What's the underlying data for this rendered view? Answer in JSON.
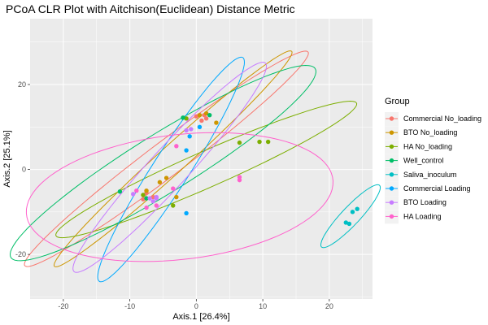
{
  "chart_data": {
    "type": "scatter",
    "title": "PCoA CLR Plot with Aitchison(Euclidean) Distance Metric",
    "xlabel": "Axis.1   [26.4%]",
    "ylabel": "Axis.2   [25.1%]",
    "xlim": [
      -25,
      26.5
    ],
    "ylim": [
      -30.5,
      35.5
    ],
    "x_ticks": [
      -20,
      -10,
      0,
      10,
      20
    ],
    "y_ticks": [
      -20,
      0,
      20
    ],
    "grid": true,
    "legend": {
      "title": "Group",
      "position": "right"
    },
    "series": [
      {
        "name": "Commercial No_loading",
        "color": "#F8766D",
        "points": [
          [
            0,
            12.5
          ],
          [
            0.8,
            11.5
          ],
          [
            1.5,
            12
          ],
          [
            1.2,
            12.8
          ],
          [
            -7.5,
            -5.5
          ],
          [
            -6.5,
            -6.5
          ],
          [
            -8,
            -7
          ]
        ],
        "ellipse": {
          "cx": -4.5,
          "cy": 2.5,
          "rx": 33,
          "ry": 3.3,
          "angle_deg": 50
        }
      },
      {
        "name": "BTO No_loading",
        "color": "#CD9600",
        "points": [
          [
            0.5,
            12.8
          ],
          [
            1.5,
            13.2
          ],
          [
            3,
            11
          ],
          [
            -7.5,
            -5
          ],
          [
            -5.5,
            -3
          ],
          [
            -4.5,
            -2
          ],
          [
            -3,
            -6.5
          ]
        ],
        "ellipse": {
          "cx": -3.5,
          "cy": 2.5,
          "rx": 31,
          "ry": 2.5,
          "angle_deg": 55
        }
      },
      {
        "name": "HA No_loading",
        "color": "#7CAE00",
        "points": [
          [
            -1.5,
            12
          ],
          [
            6.5,
            6.3
          ],
          [
            9.5,
            6.5
          ],
          [
            10.8,
            6.5
          ],
          [
            -8,
            -6
          ],
          [
            -3.5,
            -8.5
          ]
        ],
        "ellipse": {
          "cx": 1.5,
          "cy": 0,
          "rx": 27.5,
          "ry": 3.8,
          "angle_deg": 35
        }
      },
      {
        "name": "Well_control",
        "color": "#00BE67",
        "points": [
          [
            2,
            12.8
          ],
          [
            -11.5,
            -5.2
          ],
          [
            -7.5,
            -6.8
          ],
          [
            -2,
            12.2
          ]
        ],
        "ellipse": {
          "cx": -5,
          "cy": 1.5,
          "rx": 32,
          "ry": 5.8,
          "angle_deg": 45
        }
      },
      {
        "name": "Saliva_inoculum",
        "color": "#00BFC4",
        "points": [
          [
            22.5,
            -12.5
          ],
          [
            23,
            -12.8
          ],
          [
            23.5,
            -10
          ],
          [
            24.2,
            -9.3
          ]
        ],
        "ellipse": {
          "cx": 23.2,
          "cy": -11,
          "rx": 8.5,
          "ry": 1.6,
          "angle_deg": 60
        }
      },
      {
        "name": "Commercial Loading",
        "color": "#00A9FF",
        "points": [
          [
            0.5,
            10
          ],
          [
            -1.5,
            4.5
          ],
          [
            -1.5,
            -10.3
          ],
          [
            -1,
            7.8
          ]
        ],
        "ellipse": {
          "cx": -3.8,
          "cy": 0,
          "rx": 28.5,
          "ry": 3,
          "angle_deg": 68
        }
      },
      {
        "name": "BTO Loading",
        "color": "#C77CFF",
        "points": [
          [
            -0.8,
            9.5
          ],
          [
            -1.5,
            9.2
          ],
          [
            -7,
            -6.8
          ],
          [
            -9.5,
            -5.8
          ],
          [
            -6,
            -6.5
          ],
          [
            -6,
            -6.8
          ],
          [
            -6.5,
            -7.5
          ]
        ],
        "ellipse": {
          "cx": -4,
          "cy": 0.5,
          "rx": 28.5,
          "ry": 3.4,
          "angle_deg": 60
        }
      },
      {
        "name": "HA Loading",
        "color": "#FF61CC",
        "points": [
          [
            6.5,
            -1.8
          ],
          [
            6.5,
            -2.5
          ],
          [
            -9,
            -5
          ],
          [
            -7.5,
            -9
          ],
          [
            -6,
            -8.5
          ],
          [
            -3.5,
            -4.5
          ],
          [
            -3,
            5.5
          ]
        ],
        "ellipse": {
          "cx": -2.5,
          "cy": -6.5,
          "rx": 23.5,
          "ry": 14.5,
          "angle_deg": 14
        }
      }
    ]
  }
}
